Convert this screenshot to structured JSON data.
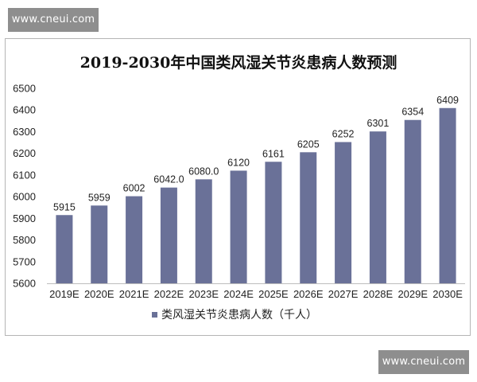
{
  "watermark": {
    "top_text": "www.cneui.com",
    "bottom_text": "www.cneui.com"
  },
  "chart_data": {
    "type": "bar",
    "title": "2019-2030年中国类风湿关节炎患病人数预测",
    "categories": [
      "2019E",
      "2020E",
      "2021E",
      "2022E",
      "2023E",
      "2024E",
      "2025E",
      "2026E",
      "2027E",
      "2028E",
      "2029E",
      "2030E"
    ],
    "series": [
      {
        "name": "类风湿关节炎患病人数（千人）",
        "values": [
          5915,
          5959,
          6002,
          6042.0,
          6080.0,
          6120,
          6161,
          6205,
          6252,
          6301,
          6354,
          6409
        ],
        "labels": [
          "5915",
          "5959",
          "6002",
          "6042.0",
          "6080.0",
          "6120",
          "6161",
          "6205",
          "6252",
          "6301",
          "6354",
          "6409"
        ]
      }
    ],
    "ylim": [
      5600,
      6500
    ],
    "yticks": [
      5600,
      5700,
      5800,
      5900,
      6000,
      6100,
      6200,
      6300,
      6400,
      6500
    ],
    "bar_color": "#6a7198",
    "grid": false,
    "legend_position": "bottom"
  }
}
